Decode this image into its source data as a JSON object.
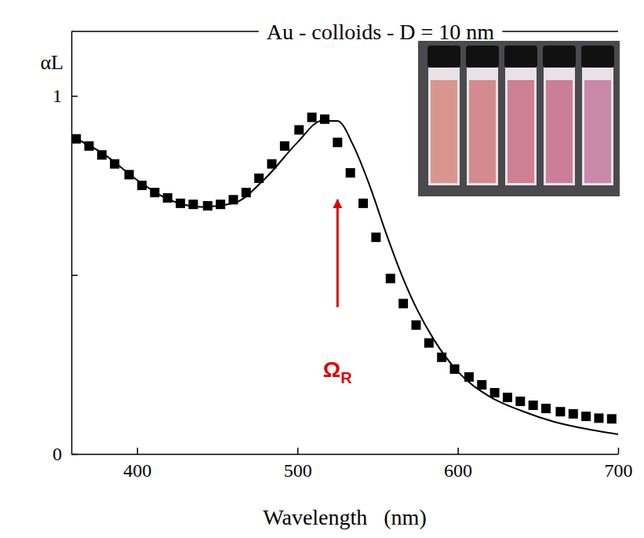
{
  "chart_data": {
    "type": "scatter",
    "title": "Au - colloids - D = 10 nm",
    "x_label": "Wavelength   (nm)",
    "y_label": "αL",
    "xlim": [
      359,
      700
    ],
    "ylim": [
      0,
      1.18
    ],
    "xticks": [
      400,
      500,
      600,
      700
    ],
    "yticks": [
      0,
      {
        "value": 0.5,
        "label": null
      },
      1
    ],
    "series": [
      {
        "type": "scatter",
        "marker": "square",
        "color": "#000000",
        "x": [
          362,
          370,
          378,
          386,
          395,
          403,
          411,
          419,
          427,
          435,
          444,
          452,
          460,
          468,
          476,
          484,
          492,
          501,
          509,
          517,
          525,
          533,
          541,
          549,
          558,
          566,
          574,
          582,
          590,
          598,
          607,
          615,
          623,
          631,
          639,
          647,
          655,
          664,
          672,
          680,
          688,
          696
        ],
        "values": [
          0.88,
          0.86,
          0.835,
          0.81,
          0.78,
          0.75,
          0.73,
          0.715,
          0.7,
          0.697,
          0.693,
          0.697,
          0.71,
          0.73,
          0.77,
          0.81,
          0.86,
          0.905,
          0.94,
          0.935,
          0.87,
          0.785,
          0.7,
          0.605,
          0.49,
          0.42,
          0.36,
          0.31,
          0.27,
          0.237,
          0.215,
          0.193,
          0.171,
          0.158,
          0.147,
          0.136,
          0.127,
          0.118,
          0.112,
          0.105,
          0.1,
          0.098
        ]
      },
      {
        "type": "line",
        "line_style": "solid",
        "color": "#000000",
        "x": [
          360,
          380,
          400,
          420,
          440,
          460,
          480,
          500,
          515,
          525,
          535,
          545,
          555,
          565,
          575,
          585,
          600,
          620,
          640,
          660,
          680,
          700
        ],
        "values": [
          0.885,
          0.835,
          0.765,
          0.71,
          0.69,
          0.7,
          0.77,
          0.87,
          0.93,
          0.93,
          0.86,
          0.75,
          0.62,
          0.5,
          0.4,
          0.32,
          0.23,
          0.16,
          0.12,
          0.09,
          0.07,
          0.055
        ]
      }
    ],
    "annotations": [
      {
        "text": "Ω",
        "subscript": "R",
        "color": "#e00000",
        "x": 525,
        "y": 0.215,
        "arrow_from": 0.41,
        "arrow_to": 0.71
      }
    ]
  }
}
